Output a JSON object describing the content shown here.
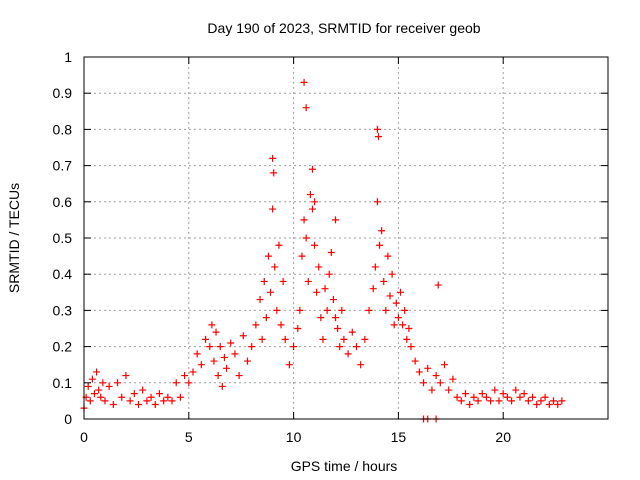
{
  "chart_data": {
    "type": "scatter",
    "title": "Day 190 of 2023, SRMTID for receiver geob",
    "xlabel": "GPS time / hours",
    "ylabel": "SRMTID / TECUs",
    "xlim": [
      0,
      25
    ],
    "ylim": [
      0,
      1
    ],
    "x_ticks": [
      0,
      5,
      10,
      15,
      20
    ],
    "x_tick_labels": [
      "0",
      "5",
      "10",
      "15",
      "20"
    ],
    "y_ticks": [
      0,
      0.1,
      0.2,
      0.3,
      0.4,
      0.5,
      0.6,
      0.7,
      0.8,
      0.9,
      1
    ],
    "y_tick_labels": [
      "0",
      "0.1",
      "0.2",
      "0.3",
      "0.4",
      "0.5",
      "0.6",
      "0.7",
      "0.8",
      "0.9",
      "1"
    ],
    "grid": true,
    "marker": "+",
    "color": "#ff0000",
    "series": [
      {
        "name": "SRMTID",
        "x": [
          0.0,
          0.1,
          0.2,
          0.3,
          0.4,
          0.5,
          0.6,
          0.7,
          0.8,
          0.9,
          1.0,
          1.2,
          1.4,
          1.6,
          1.8,
          2.0,
          2.2,
          2.4,
          2.6,
          2.8,
          3.0,
          3.2,
          3.4,
          3.6,
          3.8,
          4.0,
          4.2,
          4.4,
          4.6,
          4.8,
          5.0,
          5.2,
          5.4,
          5.6,
          5.8,
          6.0,
          6.1,
          6.2,
          6.3,
          6.4,
          6.5,
          6.6,
          6.7,
          6.8,
          7.0,
          7.2,
          7.4,
          7.6,
          7.8,
          8.0,
          8.2,
          8.4,
          8.5,
          8.6,
          8.7,
          8.8,
          8.9,
          9.0,
          9.1,
          9.2,
          9.3,
          9.4,
          9.5,
          9.6,
          9.8,
          10.0,
          10.2,
          10.3,
          10.4,
          10.5,
          10.6,
          10.7,
          10.8,
          10.9,
          11.0,
          11.1,
          11.2,
          11.3,
          11.4,
          11.5,
          11.6,
          11.7,
          11.8,
          11.9,
          12.0,
          12.1,
          12.2,
          12.3,
          12.4,
          12.6,
          12.8,
          13.0,
          13.2,
          13.4,
          13.6,
          13.8,
          13.9,
          14.0,
          14.1,
          14.2,
          14.3,
          14.4,
          14.5,
          14.6,
          14.7,
          14.8,
          14.9,
          15.0,
          15.1,
          15.2,
          15.3,
          15.4,
          15.5,
          15.6,
          15.8,
          16.0,
          16.2,
          16.4,
          16.6,
          16.8,
          16.9,
          17.0,
          17.2,
          17.4,
          17.6,
          17.8,
          18.0,
          18.2,
          18.4,
          18.6,
          18.8,
          19.0,
          19.2,
          19.4,
          19.6,
          19.8,
          20.0,
          20.2,
          20.4,
          20.6,
          20.8,
          21.0,
          21.2,
          21.4,
          21.6,
          21.8,
          22.0,
          22.2,
          22.4,
          22.6,
          22.8,
          16.2,
          16.4,
          16.8,
          10.5,
          10.6,
          14.0,
          14.05,
          10.9,
          9.0,
          9.05,
          12.0,
          11.0
        ],
        "y": [
          0.03,
          0.06,
          0.09,
          0.05,
          0.11,
          0.07,
          0.13,
          0.08,
          0.06,
          0.1,
          0.05,
          0.09,
          0.04,
          0.1,
          0.06,
          0.12,
          0.05,
          0.07,
          0.04,
          0.08,
          0.05,
          0.06,
          0.04,
          0.07,
          0.05,
          0.06,
          0.05,
          0.1,
          0.06,
          0.12,
          0.1,
          0.13,
          0.18,
          0.15,
          0.22,
          0.2,
          0.26,
          0.16,
          0.24,
          0.12,
          0.2,
          0.09,
          0.17,
          0.14,
          0.21,
          0.18,
          0.12,
          0.23,
          0.16,
          0.2,
          0.26,
          0.33,
          0.22,
          0.38,
          0.28,
          0.45,
          0.35,
          0.58,
          0.42,
          0.3,
          0.48,
          0.26,
          0.38,
          0.22,
          0.15,
          0.2,
          0.25,
          0.3,
          0.45,
          0.55,
          0.5,
          0.38,
          0.62,
          0.58,
          0.48,
          0.35,
          0.42,
          0.28,
          0.22,
          0.36,
          0.3,
          0.4,
          0.46,
          0.33,
          0.28,
          0.25,
          0.2,
          0.3,
          0.22,
          0.18,
          0.24,
          0.2,
          0.15,
          0.22,
          0.3,
          0.36,
          0.42,
          0.6,
          0.48,
          0.52,
          0.38,
          0.3,
          0.45,
          0.34,
          0.4,
          0.26,
          0.32,
          0.28,
          0.35,
          0.26,
          0.3,
          0.22,
          0.25,
          0.2,
          0.16,
          0.13,
          0.1,
          0.14,
          0.08,
          0.12,
          0.37,
          0.1,
          0.15,
          0.08,
          0.11,
          0.06,
          0.05,
          0.07,
          0.04,
          0.06,
          0.05,
          0.07,
          0.06,
          0.05,
          0.08,
          0.05,
          0.07,
          0.06,
          0.05,
          0.08,
          0.06,
          0.07,
          0.05,
          0.06,
          0.04,
          0.05,
          0.06,
          0.04,
          0.05,
          0.04,
          0.05,
          0.0,
          0.0,
          0.0,
          0.93,
          0.86,
          0.8,
          0.78,
          0.69,
          0.72,
          0.68,
          0.55,
          0.6
        ]
      }
    ]
  }
}
